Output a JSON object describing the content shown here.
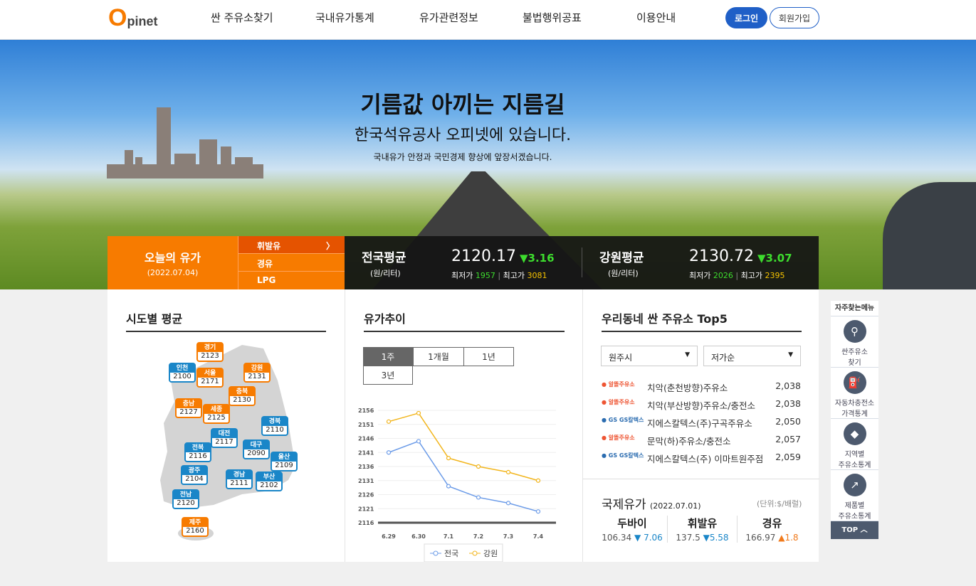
{
  "header": {
    "logo": "Opinet",
    "logo_o": "O",
    "logo_rest": "pinet",
    "nav": [
      "싼 주유소찾기",
      "국내유가통계",
      "유가관련정보",
      "불법행위공표",
      "이용안내"
    ],
    "login": "로그인",
    "signup": "회원가입",
    "accent": "#1f5fc7"
  },
  "hero": {
    "title": "기름값 아끼는 지름길",
    "subtitle": "한국석유공사 오피넷에 있습니다.",
    "desc": "국내유가 안정과 국민경제 향상에 앞장서겠습니다."
  },
  "today": {
    "title": "오늘의 유가",
    "date": "(2022.07.04)",
    "fuels": [
      "휘발유",
      "경유",
      "LPG"
    ],
    "selected": "휘발유",
    "national": {
      "label": "전국평균",
      "unit": "(원/리터)",
      "price": "2120.17",
      "change": "▼3.16",
      "min_label": "최저가",
      "min": "1957",
      "max_label": "최고가",
      "max": "3081"
    },
    "region": {
      "label": "강원평균",
      "unit": "(원/리터)",
      "price": "2130.72",
      "change": "▼3.07",
      "min_label": "최저가",
      "min": "2026",
      "max_label": "최고가",
      "max": "2395"
    }
  },
  "sido": {
    "title": "시도별 평균",
    "regions": [
      {
        "name": "경기",
        "value": "2123",
        "color": "orange"
      },
      {
        "name": "인천",
        "value": "2100",
        "color": "blue"
      },
      {
        "name": "서울",
        "value": "2171",
        "color": "orange"
      },
      {
        "name": "강원",
        "value": "2131",
        "color": "orange"
      },
      {
        "name": "충북",
        "value": "2130",
        "color": "orange"
      },
      {
        "name": "충남",
        "value": "2127",
        "color": "orange"
      },
      {
        "name": "세종",
        "value": "2125",
        "color": "orange"
      },
      {
        "name": "경북",
        "value": "2110",
        "color": "blue"
      },
      {
        "name": "대전",
        "value": "2117",
        "color": "blue"
      },
      {
        "name": "전북",
        "value": "2116",
        "color": "blue"
      },
      {
        "name": "대구",
        "value": "2090",
        "color": "blue"
      },
      {
        "name": "울산",
        "value": "2109",
        "color": "blue"
      },
      {
        "name": "광주",
        "value": "2104",
        "color": "blue"
      },
      {
        "name": "경남",
        "value": "2111",
        "color": "blue"
      },
      {
        "name": "부산",
        "value": "2102",
        "color": "blue"
      },
      {
        "name": "전남",
        "value": "2120",
        "color": "blue"
      },
      {
        "name": "제주",
        "value": "2160",
        "color": "orange"
      }
    ]
  },
  "trend": {
    "title": "유가추이",
    "tabs": [
      "1주",
      "1개월",
      "1년",
      "3년"
    ],
    "selected": "1주"
  },
  "chart_data": {
    "type": "line",
    "categories": [
      "6.29",
      "6.30",
      "7.1",
      "7.2",
      "7.3",
      "7.4"
    ],
    "ylim": [
      2116,
      2156
    ],
    "yticks": [
      2116,
      2121,
      2126,
      2131,
      2136,
      2141,
      2146,
      2151,
      2156
    ],
    "grid": true,
    "legend": "bottom",
    "series": [
      {
        "name": "전국",
        "color": "#6b9be8",
        "values": [
          2141,
          2145,
          2129,
          2125,
          2123,
          2120
        ]
      },
      {
        "name": "강원",
        "color": "#f2b51c",
        "values": [
          2152,
          2155,
          2139,
          2136,
          2134,
          2131
        ]
      }
    ]
  },
  "top5": {
    "title": "우리동네 싼 주유소 Top5",
    "city": "원주시",
    "sort": "저가순",
    "items": [
      {
        "brand": "알뜰주유소",
        "name": "치악(춘천방향)주유소",
        "price": "2,038"
      },
      {
        "brand": "알뜰주유소",
        "name": "치악(부산방향)주유소/충전소",
        "price": "2,038"
      },
      {
        "brand": "GS칼텍스",
        "name": "지에스칼텍스(주)구곡주유소",
        "price": "2,050"
      },
      {
        "brand": "알뜰주유소",
        "name": "문막(하)주유소/충전소",
        "price": "2,057"
      },
      {
        "brand": "GS칼텍스",
        "name": "지에스칼텍스(주) 이마트원주점",
        "price": "2,059"
      }
    ]
  },
  "intl": {
    "title": "국제유가",
    "date": "(2022.07.01)",
    "unit": "(단위:$/배럴)",
    "items": [
      {
        "name": "두바이",
        "price": "106.34",
        "change": "▼ 7.06",
        "dir": "down"
      },
      {
        "name": "휘발유",
        "price": "137.5",
        "change": "▼5.58",
        "dir": "down"
      },
      {
        "name": "경유",
        "price": "166.97",
        "change": "▲1.8",
        "dir": "up"
      }
    ]
  },
  "quick": {
    "title": "자주찾는메뉴",
    "items": [
      {
        "l1": "싼주유소",
        "l2": "찾기",
        "icon": "pin-icon"
      },
      {
        "l1": "자동차충전소",
        "l2": "가격통계",
        "icon": "charger-icon"
      },
      {
        "l1": "지역별",
        "l2": "주유소통계",
        "icon": "korea-map-icon"
      },
      {
        "l1": "제품별",
        "l2": "주유소통계",
        "icon": "chart-icon"
      }
    ],
    "top": "TOP"
  }
}
